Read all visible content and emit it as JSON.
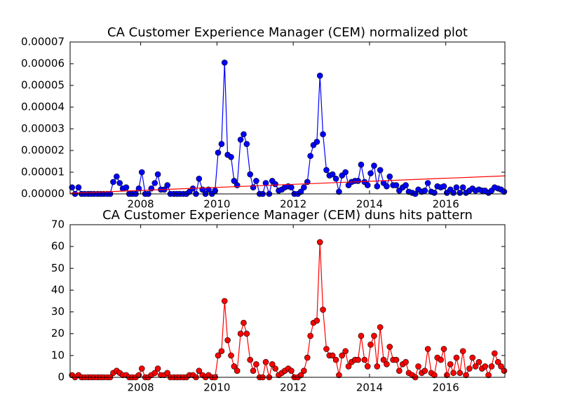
{
  "chart_data": [
    {
      "type": "line",
      "title": "CA Customer Experience Manager (CEM) normalized plot",
      "x": [
        2006.2,
        2006.28,
        2006.37,
        2006.45,
        2006.53,
        2006.62,
        2006.7,
        2006.78,
        2006.87,
        2006.95,
        2007.03,
        2007.12,
        2007.2,
        2007.28,
        2007.37,
        2007.45,
        2007.53,
        2007.62,
        2007.7,
        2007.78,
        2007.87,
        2007.95,
        2008.03,
        2008.12,
        2008.2,
        2008.28,
        2008.37,
        2008.45,
        2008.53,
        2008.62,
        2008.7,
        2008.78,
        2008.87,
        2008.95,
        2009.03,
        2009.12,
        2009.2,
        2009.28,
        2009.37,
        2009.45,
        2009.53,
        2009.62,
        2009.7,
        2009.78,
        2009.87,
        2009.95,
        2010.03,
        2010.12,
        2010.2,
        2010.28,
        2010.37,
        2010.45,
        2010.53,
        2010.62,
        2010.7,
        2010.78,
        2010.87,
        2010.95,
        2011.03,
        2011.12,
        2011.2,
        2011.28,
        2011.37,
        2011.45,
        2011.53,
        2011.62,
        2011.7,
        2011.78,
        2011.87,
        2011.95,
        2012.03,
        2012.12,
        2012.2,
        2012.28,
        2012.37,
        2012.45,
        2012.53,
        2012.62,
        2012.7,
        2012.78,
        2012.87,
        2012.95,
        2013.03,
        2013.12,
        2013.2,
        2013.28,
        2013.37,
        2013.45,
        2013.53,
        2013.62,
        2013.7,
        2013.78,
        2013.87,
        2013.95,
        2014.03,
        2014.12,
        2014.2,
        2014.28,
        2014.37,
        2014.45,
        2014.53,
        2014.62,
        2014.7,
        2014.78,
        2014.87,
        2014.95,
        2015.03,
        2015.12,
        2015.2,
        2015.28,
        2015.37,
        2015.45,
        2015.53,
        2015.62,
        2015.7,
        2015.78,
        2015.87,
        2015.95,
        2016.03,
        2016.12,
        2016.2,
        2016.28,
        2016.37,
        2016.45,
        2016.53,
        2016.62,
        2016.7,
        2016.78,
        2016.87,
        2016.95,
        2017.03,
        2017.12,
        2017.2,
        2017.28,
        2017.37,
        2017.45,
        2017.53
      ],
      "values": [
        3e-06,
        0,
        3e-06,
        0,
        0,
        0,
        0,
        0,
        0,
        0,
        0,
        0,
        0,
        5.5e-06,
        8e-06,
        5e-06,
        2.5e-06,
        3e-06,
        0,
        0,
        0,
        2.5e-06,
        1e-05,
        0,
        0,
        2.5e-06,
        5e-06,
        9e-06,
        2e-06,
        2e-06,
        4e-06,
        0,
        0,
        0,
        0,
        0,
        0,
        1e-06,
        2.5e-06,
        0,
        7e-06,
        2e-06,
        0,
        2e-06,
        0,
        1.5e-06,
        1.9e-05,
        2.3e-05,
        6.05e-05,
        1.8e-05,
        1.7e-05,
        6e-06,
        4e-06,
        2.5e-05,
        2.75e-05,
        2.3e-05,
        9e-06,
        3e-06,
        6e-06,
        0,
        0,
        5e-06,
        0,
        6e-06,
        4.5e-06,
        1.5e-06,
        2e-06,
        3e-06,
        3.5e-06,
        3e-06,
        0,
        0,
        1e-06,
        3e-06,
        5.5e-06,
        1.75e-05,
        2.25e-05,
        2.4e-05,
        5.45e-05,
        2.75e-05,
        1.1e-05,
        8.5e-06,
        9e-06,
        7e-06,
        1e-06,
        8.5e-06,
        1e-05,
        4e-06,
        5.5e-06,
        6e-06,
        6e-06,
        1.35e-05,
        5.5e-06,
        4e-06,
        9.5e-06,
        1.3e-05,
        3.5e-06,
        1.1e-05,
        5e-06,
        3.5e-06,
        8e-06,
        4e-06,
        4e-06,
        1.5e-06,
        3e-06,
        4e-06,
        1e-06,
        5e-07,
        0,
        2e-06,
        1e-06,
        1.5e-06,
        5e-06,
        1e-06,
        5e-07,
        3.5e-06,
        3e-06,
        3.5e-06,
        5e-07,
        2e-06,
        5e-07,
        3e-06,
        5e-07,
        3e-06,
        5e-07,
        1.5e-06,
        2.5e-06,
        1.5e-06,
        2e-06,
        1.5e-06,
        1.5e-06,
        5e-07,
        1.5e-06,
        3e-06,
        2.5e-06,
        2e-06,
        1e-06
      ],
      "color": "#0000ff",
      "trend": {
        "x": [
          2006.15,
          2017.55
        ],
        "values": [
          3e-07,
          8.3e-06
        ],
        "color": "#ff0000"
      },
      "xlim": [
        2006.15,
        2017.55
      ],
      "xticks": [
        2008,
        2010,
        2012,
        2014,
        2016
      ],
      "ylim": [
        0,
        7e-05
      ],
      "yticks": [
        {
          "value": 0,
          "label": "0.00000"
        },
        1e-05,
        2e-05,
        3e-05,
        4e-05,
        5e-05,
        6e-05,
        7e-05
      ]
    },
    {
      "type": "line",
      "title": "CA Customer Experience Manager (CEM) duns hits pattern",
      "x": [
        2006.2,
        2006.28,
        2006.37,
        2006.45,
        2006.53,
        2006.62,
        2006.7,
        2006.78,
        2006.87,
        2006.95,
        2007.03,
        2007.12,
        2007.2,
        2007.28,
        2007.37,
        2007.45,
        2007.53,
        2007.62,
        2007.7,
        2007.78,
        2007.87,
        2007.95,
        2008.03,
        2008.12,
        2008.2,
        2008.28,
        2008.37,
        2008.45,
        2008.53,
        2008.62,
        2008.7,
        2008.78,
        2008.87,
        2008.95,
        2009.03,
        2009.12,
        2009.2,
        2009.28,
        2009.37,
        2009.45,
        2009.53,
        2009.62,
        2009.7,
        2009.78,
        2009.87,
        2009.95,
        2010.03,
        2010.12,
        2010.2,
        2010.28,
        2010.37,
        2010.45,
        2010.53,
        2010.62,
        2010.7,
        2010.78,
        2010.87,
        2010.95,
        2011.03,
        2011.12,
        2011.2,
        2011.28,
        2011.37,
        2011.45,
        2011.53,
        2011.62,
        2011.7,
        2011.78,
        2011.87,
        2011.95,
        2012.03,
        2012.12,
        2012.2,
        2012.28,
        2012.37,
        2012.45,
        2012.53,
        2012.62,
        2012.7,
        2012.78,
        2012.87,
        2012.95,
        2013.03,
        2013.12,
        2013.2,
        2013.28,
        2013.37,
        2013.45,
        2013.53,
        2013.62,
        2013.7,
        2013.78,
        2013.87,
        2013.95,
        2014.03,
        2014.12,
        2014.2,
        2014.28,
        2014.37,
        2014.45,
        2014.53,
        2014.62,
        2014.7,
        2014.78,
        2014.87,
        2014.95,
        2015.03,
        2015.12,
        2015.2,
        2015.28,
        2015.37,
        2015.45,
        2015.53,
        2015.62,
        2015.7,
        2015.78,
        2015.87,
        2015.95,
        2016.03,
        2016.12,
        2016.2,
        2016.28,
        2016.37,
        2016.45,
        2016.53,
        2016.62,
        2016.7,
        2016.78,
        2016.87,
        2016.95,
        2017.03,
        2017.12,
        2017.2,
        2017.28,
        2017.37,
        2017.45,
        2017.53
      ],
      "values": [
        1,
        0,
        1,
        0,
        0,
        0,
        0,
        0,
        0,
        0,
        0,
        0,
        0,
        2,
        3,
        2,
        1,
        1,
        0,
        0,
        0,
        1,
        4,
        0,
        0,
        1,
        2,
        4,
        1,
        1,
        2,
        0,
        0,
        0,
        0,
        0,
        0,
        1,
        1,
        0,
        3,
        1,
        0,
        1,
        0,
        0,
        10,
        12,
        35,
        17,
        10,
        5,
        3,
        20,
        25,
        20,
        8,
        3,
        6,
        0,
        0,
        7,
        0,
        6,
        4,
        1,
        2,
        3,
        4,
        3,
        0,
        0,
        1,
        3,
        9,
        19,
        25,
        26,
        62,
        31,
        13,
        10,
        10,
        8,
        1,
        10,
        12,
        5,
        7,
        8,
        8,
        19,
        8,
        5,
        15,
        19,
        5,
        23,
        8,
        6,
        14,
        8,
        8,
        3,
        6,
        7,
        2,
        1,
        0,
        5,
        2,
        3,
        13,
        2,
        1,
        9,
        8,
        13,
        1,
        6,
        2,
        9,
        2,
        12,
        1,
        4,
        9,
        5,
        7,
        4,
        5,
        1,
        5,
        11,
        7,
        5,
        3
      ],
      "color": "#ff0000",
      "xlim": [
        2006.15,
        2017.55
      ],
      "xticks": [
        2008,
        2010,
        2012,
        2014,
        2016
      ],
      "ylim": [
        0,
        70
      ],
      "yticks": [
        0,
        10,
        20,
        30,
        40,
        50,
        60,
        70
      ]
    }
  ]
}
